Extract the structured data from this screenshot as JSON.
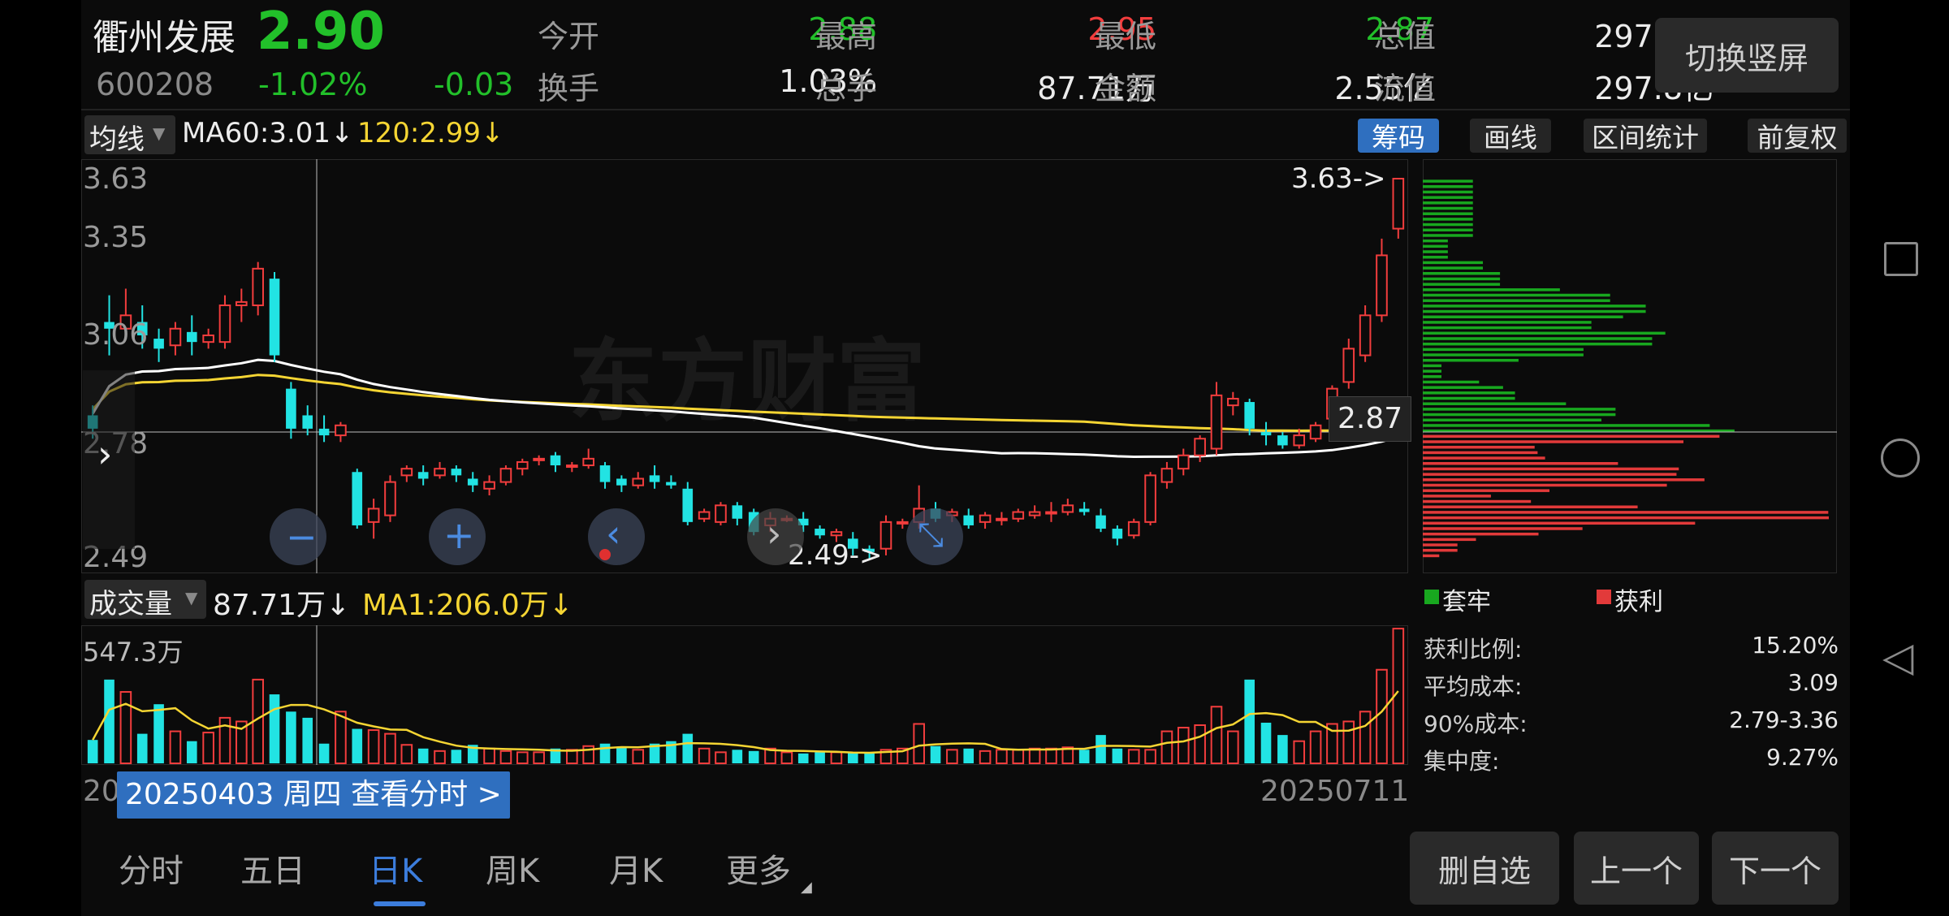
{
  "stock": {
    "name": "衢州发展",
    "price": "2.90",
    "code": "600208",
    "change_pct": "-1.02%",
    "change": "-0.03"
  },
  "quote": {
    "open_label": "今开",
    "open": "2.88",
    "high_label": "最高",
    "high": "2.95",
    "low_label": "最低",
    "low": "2.87",
    "mktcap_label": "总值",
    "mktcap": "297.8亿",
    "turnover_label": "换手",
    "turnover": "1.03%",
    "volume_label": "总手",
    "volume": "87.71万",
    "amount_label": "金额",
    "amount": "2.55亿",
    "float_label": "流值",
    "float": "297.8亿"
  },
  "switch_button": "切换竖屏",
  "ma_bar": {
    "dropdown": "均线",
    "ma60": "MA60:3.01",
    "ma60_arrow": "↓",
    "ma120": "120:2.99",
    "ma120_arrow": "↓"
  },
  "tools": [
    "筹码",
    "画线",
    "区间统计",
    "前复权"
  ],
  "price_axis": [
    "3.63",
    "3.35",
    "3.06",
    "2.78",
    "2.49"
  ],
  "markers": {
    "high": "3.63->",
    "low": "2.49->",
    "crosshair_price": "2.87"
  },
  "volume_bar": {
    "dropdown": "成交量",
    "value": "87.71万",
    "value_arrow": "↓",
    "ma1": "MA1:206.0万",
    "ma1_arrow": "↓",
    "axis_max": "547.3万"
  },
  "date": {
    "start_partial": "20",
    "tooltip": "20250403 周四 查看分时 >",
    "end": "20250711"
  },
  "chips_legend": {
    "trapped": "套牢",
    "profit": "获利",
    "trapped_color": "#18a81f",
    "profit_color": "#e23a3a"
  },
  "chips_stats": [
    {
      "label": "获利比例:",
      "value": "15.20%"
    },
    {
      "label": "平均成本:",
      "value": "3.09"
    },
    {
      "label": "90%成本:",
      "value": "2.79-3.36"
    },
    {
      "label": "集中度:",
      "value": "9.27%"
    }
  ],
  "tabs": [
    "分时",
    "五日",
    "日K",
    "周K",
    "月K",
    "更多"
  ],
  "active_tab": "日K",
  "actions": [
    "删自选",
    "上一个",
    "下一个"
  ],
  "watermark": "东方财富",
  "colors": {
    "up": "#f23d3d",
    "down": "#22e3e3",
    "price_down": "#22c02a",
    "accent": "#2f6fbf",
    "ma_white": "#ffffff",
    "ma_yellow": "#f5d533"
  },
  "chart_data": {
    "type": "candlestick",
    "ylim": [
      2.49,
      3.63
    ],
    "candles": [
      [
        2.92,
        2.88,
        2.95,
        2.85
      ],
      [
        3.2,
        3.18,
        3.28,
        3.1
      ],
      [
        3.18,
        3.22,
        3.3,
        3.15
      ],
      [
        3.2,
        3.16,
        3.25,
        3.12
      ],
      [
        3.15,
        3.12,
        3.18,
        3.08
      ],
      [
        3.13,
        3.18,
        3.2,
        3.1
      ],
      [
        3.17,
        3.14,
        3.22,
        3.1
      ],
      [
        3.14,
        3.16,
        3.18,
        3.12
      ],
      [
        3.14,
        3.25,
        3.28,
        3.12
      ],
      [
        3.25,
        3.26,
        3.3,
        3.2
      ],
      [
        3.25,
        3.36,
        3.38,
        3.22
      ],
      [
        3.33,
        3.1,
        3.35,
        3.08
      ],
      [
        3.0,
        2.88,
        3.02,
        2.85
      ],
      [
        2.92,
        2.88,
        2.95,
        2.86
      ],
      [
        2.88,
        2.86,
        2.92,
        2.84
      ],
      [
        2.86,
        2.89,
        2.9,
        2.84
      ],
      [
        2.75,
        2.59,
        2.76,
        2.58
      ],
      [
        2.6,
        2.64,
        2.67,
        2.55
      ],
      [
        2.62,
        2.72,
        2.74,
        2.6
      ],
      [
        2.74,
        2.76,
        2.77,
        2.72
      ],
      [
        2.75,
        2.73,
        2.77,
        2.71
      ],
      [
        2.74,
        2.76,
        2.78,
        2.73
      ],
      [
        2.76,
        2.74,
        2.77,
        2.72
      ],
      [
        2.73,
        2.71,
        2.75,
        2.69
      ],
      [
        2.7,
        2.72,
        2.74,
        2.68
      ],
      [
        2.72,
        2.76,
        2.77,
        2.71
      ],
      [
        2.76,
        2.78,
        2.79,
        2.74
      ],
      [
        2.79,
        2.79,
        2.8,
        2.77
      ],
      [
        2.8,
        2.77,
        2.81,
        2.75
      ],
      [
        2.77,
        2.77,
        2.78,
        2.75
      ],
      [
        2.77,
        2.79,
        2.82,
        2.76
      ],
      [
        2.77,
        2.72,
        2.78,
        2.7
      ],
      [
        2.73,
        2.71,
        2.74,
        2.69
      ],
      [
        2.71,
        2.73,
        2.75,
        2.7
      ],
      [
        2.74,
        2.72,
        2.77,
        2.7
      ],
      [
        2.72,
        2.71,
        2.74,
        2.7
      ],
      [
        2.7,
        2.6,
        2.72,
        2.59
      ],
      [
        2.61,
        2.63,
        2.64,
        2.6
      ],
      [
        2.6,
        2.65,
        2.66,
        2.59
      ],
      [
        2.65,
        2.61,
        2.66,
        2.59
      ],
      [
        2.63,
        2.57,
        2.64,
        2.56
      ],
      [
        2.59,
        2.61,
        2.63,
        2.57
      ],
      [
        2.61,
        2.61,
        2.62,
        2.6
      ],
      [
        2.61,
        2.59,
        2.63,
        2.57
      ],
      [
        2.58,
        2.56,
        2.59,
        2.55
      ],
      [
        2.56,
        2.57,
        2.58,
        2.54
      ],
      [
        2.55,
        2.52,
        2.57,
        2.5
      ],
      [
        2.52,
        2.51,
        2.53,
        2.49
      ],
      [
        2.52,
        2.6,
        2.62,
        2.5
      ],
      [
        2.6,
        2.6,
        2.61,
        2.58
      ],
      [
        2.6,
        2.64,
        2.71,
        2.58
      ],
      [
        2.64,
        2.61,
        2.66,
        2.6
      ],
      [
        2.62,
        2.63,
        2.64,
        2.6
      ],
      [
        2.62,
        2.59,
        2.64,
        2.58
      ],
      [
        2.6,
        2.62,
        2.63,
        2.58
      ],
      [
        2.61,
        2.61,
        2.63,
        2.59
      ],
      [
        2.61,
        2.63,
        2.64,
        2.6
      ],
      [
        2.62,
        2.63,
        2.65,
        2.61
      ],
      [
        2.63,
        2.63,
        2.66,
        2.6
      ],
      [
        2.63,
        2.65,
        2.67,
        2.62
      ],
      [
        2.64,
        2.63,
        2.66,
        2.62
      ],
      [
        2.62,
        2.58,
        2.64,
        2.57
      ],
      [
        2.58,
        2.55,
        2.59,
        2.53
      ],
      [
        2.56,
        2.6,
        2.61,
        2.55
      ],
      [
        2.6,
        2.74,
        2.75,
        2.59
      ],
      [
        2.72,
        2.76,
        2.78,
        2.7
      ],
      [
        2.76,
        2.8,
        2.82,
        2.74
      ],
      [
        2.8,
        2.85,
        2.86,
        2.78
      ],
      [
        2.82,
        2.98,
        3.02,
        2.8
      ],
      [
        2.95,
        2.97,
        2.99,
        2.92
      ],
      [
        2.96,
        2.88,
        2.97,
        2.86
      ],
      [
        2.87,
        2.86,
        2.9,
        2.83
      ],
      [
        2.86,
        2.83,
        2.87,
        2.82
      ],
      [
        2.83,
        2.86,
        2.88,
        2.82
      ],
      [
        2.85,
        2.89,
        2.9,
        2.84
      ],
      [
        2.91,
        3.0,
        3.01,
        2.9
      ],
      [
        3.02,
        3.12,
        3.15,
        3.0
      ],
      [
        3.1,
        3.22,
        3.25,
        3.08
      ],
      [
        3.22,
        3.4,
        3.45,
        3.2
      ],
      [
        3.48,
        3.63,
        3.63,
        3.45
      ]
    ],
    "volume_ylim": [
      0,
      547.3
    ],
    "volumes": [
      95,
      340,
      290,
      120,
      240,
      130,
      90,
      125,
      185,
      170,
      340,
      280,
      210,
      185,
      80,
      210,
      140,
      135,
      120,
      75,
      60,
      50,
      55,
      75,
      60,
      50,
      45,
      45,
      60,
      55,
      70,
      80,
      65,
      55,
      80,
      90,
      120,
      60,
      45,
      55,
      50,
      60,
      45,
      40,
      45,
      45,
      45,
      40,
      55,
      60,
      160,
      70,
      55,
      60,
      50,
      55,
      55,
      60,
      60,
      65,
      55,
      115,
      60,
      55,
      55,
      130,
      145,
      155,
      230,
      130,
      340,
      165,
      115,
      90,
      130,
      160,
      170,
      210,
      380,
      547
    ]
  }
}
